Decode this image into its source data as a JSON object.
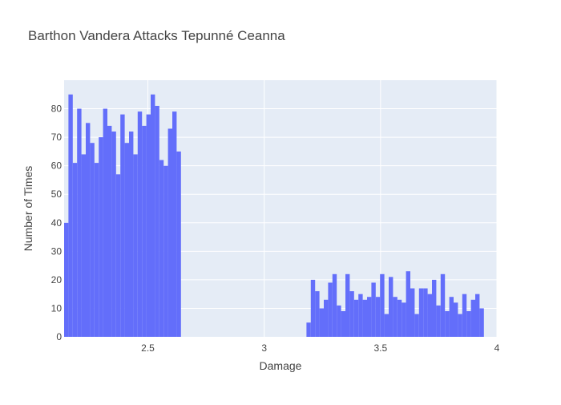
{
  "chart_data": {
    "type": "bar",
    "title": "Barthon Vandera Attacks Tepunné Ceanna",
    "xlabel": "Damage",
    "ylabel": "Number of Times",
    "xlim": [
      2.14,
      4.0
    ],
    "ylim": [
      0,
      90
    ],
    "x_ticks": [
      {
        "value": 2.5,
        "label": "2.5"
      },
      {
        "value": 3,
        "label": "3"
      },
      {
        "value": 3.5,
        "label": "3.5"
      },
      {
        "value": 4,
        "label": "4"
      }
    ],
    "y_ticks": [
      0,
      10,
      20,
      30,
      40,
      50,
      60,
      70,
      80
    ],
    "bin_width": 0.0186,
    "bins": [
      {
        "x": 2.14,
        "y": 40
      },
      {
        "x": 2.1586,
        "y": 85
      },
      {
        "x": 2.1772,
        "y": 61
      },
      {
        "x": 2.1958,
        "y": 80
      },
      {
        "x": 2.2144,
        "y": 64
      },
      {
        "x": 2.233,
        "y": 75
      },
      {
        "x": 2.2516,
        "y": 68
      },
      {
        "x": 2.2702,
        "y": 61
      },
      {
        "x": 2.2888,
        "y": 70
      },
      {
        "x": 2.3074,
        "y": 80
      },
      {
        "x": 2.326,
        "y": 74
      },
      {
        "x": 2.3446,
        "y": 72
      },
      {
        "x": 2.3632,
        "y": 57
      },
      {
        "x": 2.3818,
        "y": 78
      },
      {
        "x": 2.4004,
        "y": 68
      },
      {
        "x": 2.419,
        "y": 72
      },
      {
        "x": 2.4376,
        "y": 64
      },
      {
        "x": 2.4562,
        "y": 79
      },
      {
        "x": 2.4748,
        "y": 74
      },
      {
        "x": 2.4934,
        "y": 78
      },
      {
        "x": 2.512,
        "y": 85
      },
      {
        "x": 2.5306,
        "y": 81
      },
      {
        "x": 2.5492,
        "y": 62
      },
      {
        "x": 2.5678,
        "y": 60
      },
      {
        "x": 2.5864,
        "y": 73
      },
      {
        "x": 2.605,
        "y": 79
      },
      {
        "x": 2.6236,
        "y": 65
      },
      {
        "x": 3.1816,
        "y": 5
      },
      {
        "x": 3.2002,
        "y": 20
      },
      {
        "x": 3.2188,
        "y": 16
      },
      {
        "x": 3.2374,
        "y": 10
      },
      {
        "x": 3.256,
        "y": 13
      },
      {
        "x": 3.2746,
        "y": 19
      },
      {
        "x": 3.2932,
        "y": 22
      },
      {
        "x": 3.3118,
        "y": 11
      },
      {
        "x": 3.3304,
        "y": 9
      },
      {
        "x": 3.349,
        "y": 22
      },
      {
        "x": 3.3676,
        "y": 16
      },
      {
        "x": 3.3862,
        "y": 13
      },
      {
        "x": 3.4048,
        "y": 15
      },
      {
        "x": 3.4234,
        "y": 13
      },
      {
        "x": 3.442,
        "y": 14
      },
      {
        "x": 3.4606,
        "y": 19
      },
      {
        "x": 3.4792,
        "y": 14
      },
      {
        "x": 3.4978,
        "y": 22
      },
      {
        "x": 3.5164,
        "y": 8
      },
      {
        "x": 3.535,
        "y": 21
      },
      {
        "x": 3.5536,
        "y": 14
      },
      {
        "x": 3.5722,
        "y": 13
      },
      {
        "x": 3.5908,
        "y": 12
      },
      {
        "x": 3.6094,
        "y": 23
      },
      {
        "x": 3.628,
        "y": 17
      },
      {
        "x": 3.6466,
        "y": 8
      },
      {
        "x": 3.6652,
        "y": 17
      },
      {
        "x": 3.6838,
        "y": 17
      },
      {
        "x": 3.7024,
        "y": 15
      },
      {
        "x": 3.721,
        "y": 20
      },
      {
        "x": 3.7396,
        "y": 11
      },
      {
        "x": 3.7582,
        "y": 22
      },
      {
        "x": 3.7768,
        "y": 9
      },
      {
        "x": 3.7954,
        "y": 14
      },
      {
        "x": 3.814,
        "y": 12
      },
      {
        "x": 3.8326,
        "y": 8
      },
      {
        "x": 3.8512,
        "y": 15
      },
      {
        "x": 3.8698,
        "y": 9
      },
      {
        "x": 3.8884,
        "y": 13
      },
      {
        "x": 3.907,
        "y": 15
      },
      {
        "x": 3.9256,
        "y": 10
      }
    ],
    "grid": true,
    "legend": "none",
    "colors": {
      "bar": "#636efa",
      "plot_bg": "#e5ecf6",
      "grid": "#ffffff",
      "text": "#444444",
      "title": "#444444"
    }
  }
}
